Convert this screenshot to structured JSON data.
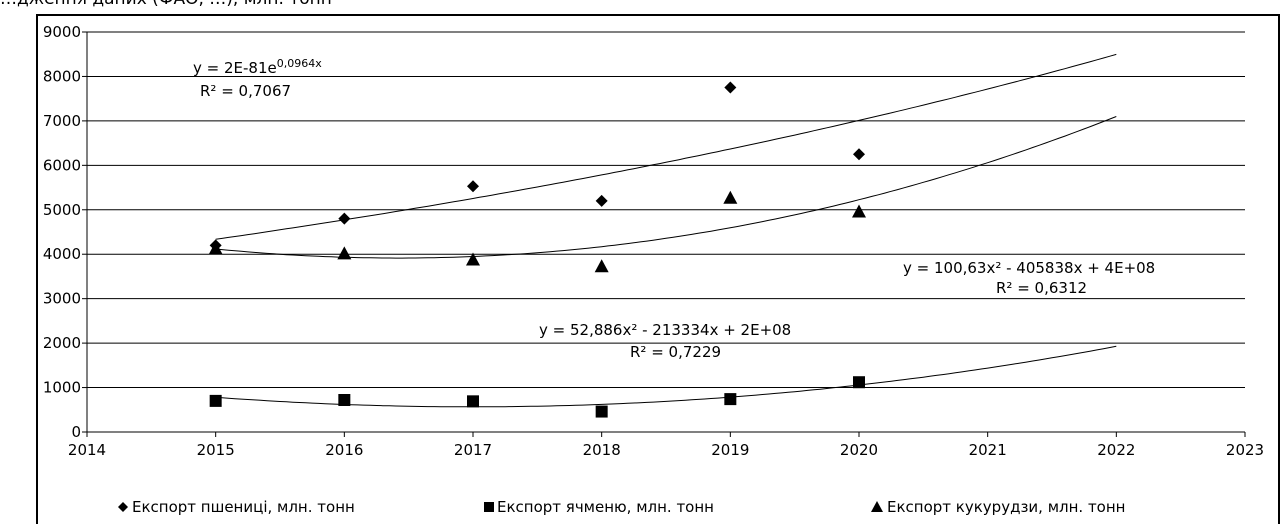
{
  "caption_fragment": "…дження даних (ФАО, …), млн. тонн",
  "chart_data": {
    "type": "scatter",
    "x": [
      2015,
      2016,
      2017,
      2018,
      2019,
      2020
    ],
    "xlim": [
      2014,
      2023
    ],
    "ylim": [
      0,
      9000
    ],
    "xticks": [
      "2014",
      "2015",
      "2016",
      "2017",
      "2018",
      "2019",
      "2020",
      "2021",
      "2022",
      "2023"
    ],
    "yticks": [
      "0",
      "1000",
      "2000",
      "3000",
      "4000",
      "5000",
      "6000",
      "7000",
      "8000",
      "9000"
    ],
    "grid": true,
    "legend_position": "bottom",
    "series": [
      {
        "name": "Експорт пшениці, млн. тонн",
        "marker": "diamond",
        "values": [
          4200,
          4800,
          5530,
          5200,
          7750,
          6250
        ],
        "trendline": {
          "kind": "exponential",
          "label": "y = 2E-81e",
          "label_exp": "0,0964x",
          "r2": "R² = 0,7067"
        }
      },
      {
        "name": "Експорт ячменю, млн. тонн",
        "marker": "square",
        "values": [
          700,
          720,
          690,
          460,
          740,
          1120
        ],
        "trendline": {
          "kind": "poly2",
          "label": "y = 52,886x² - 213334x + 2E+08",
          "r2": "R² = 0,7229"
        }
      },
      {
        "name": "Експорт кукурудзи, млн. тонн",
        "marker": "triangle",
        "values": [
          4130,
          4020,
          3880,
          3730,
          5270,
          4960
        ],
        "trendline": {
          "kind": "poly2",
          "label": "y = 100,63x² - 405838x + 4E+08",
          "r2": "R² = 0,6312"
        }
      }
    ]
  }
}
